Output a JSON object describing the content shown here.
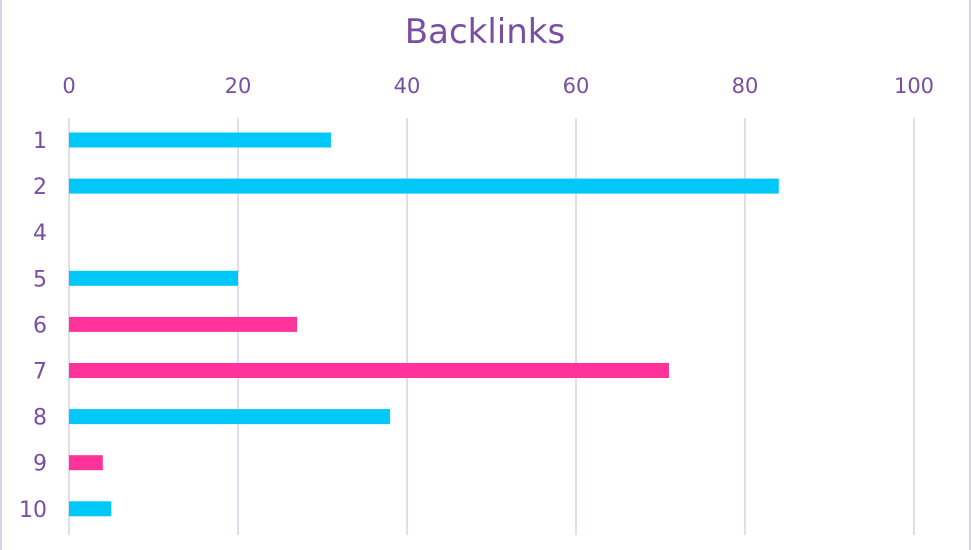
{
  "chart_data": {
    "type": "bar",
    "orientation": "horizontal",
    "title": "Backlinks",
    "xlabel": "",
    "ylabel": "",
    "xlim": [
      0,
      100
    ],
    "x_ticks": [
      "0",
      "20",
      "40",
      "60",
      "80",
      "100"
    ],
    "grid": true,
    "categories": [
      "1",
      "2",
      "4",
      "5",
      "6",
      "7",
      "8",
      "9",
      "10"
    ],
    "values": [
      31,
      84,
      null,
      20,
      27,
      71,
      38,
      4,
      5
    ],
    "bar_colors": [
      "#00c8f8",
      "#00c8f8",
      null,
      "#00c8f8",
      "#ff3399",
      "#ff3399",
      "#00c8f8",
      "#ff3399",
      "#00c8f8"
    ]
  },
  "colors": {
    "text": "#7a4ea3",
    "grid": "#d9d2e9",
    "cyan": "#00c8f8",
    "pink": "#ff3399"
  }
}
